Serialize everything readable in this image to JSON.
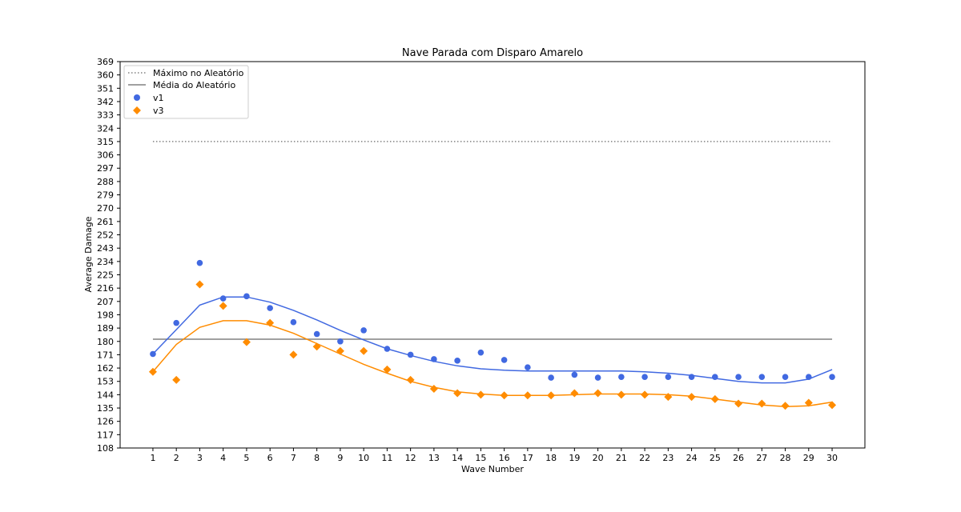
{
  "chart_data": {
    "type": "scatter",
    "title": "Nave Parada com Disparo Amarelo",
    "xlabel": "Wave Number",
    "ylabel": "Average Damage",
    "xlim": [
      -0.4,
      31.4
    ],
    "ylim": [
      108,
      369
    ],
    "x": [
      1,
      2,
      3,
      4,
      5,
      6,
      7,
      8,
      9,
      10,
      11,
      12,
      13,
      14,
      15,
      16,
      17,
      18,
      19,
      20,
      21,
      22,
      23,
      24,
      25,
      26,
      27,
      28,
      29,
      30
    ],
    "yticks": [
      108,
      117,
      126,
      135,
      144,
      153,
      162,
      171,
      180,
      189,
      198,
      207,
      216,
      225,
      234,
      243,
      252,
      261,
      270,
      279,
      288,
      297,
      306,
      315,
      324,
      333,
      342,
      351,
      360,
      369
    ],
    "reference_lines": [
      {
        "name": "Máximo no Aleatório",
        "value": 315,
        "style": "dotted",
        "color": "#808080"
      },
      {
        "name": "Média do Aleatório",
        "value": 181.5,
        "style": "solid",
        "color": "#808080"
      }
    ],
    "series": [
      {
        "name": "v1",
        "marker": "circle",
        "color": "#4169e1",
        "values": [
          171.5,
          192.5,
          233,
          209,
          210.5,
          202.5,
          193,
          185,
          180,
          187.5,
          175,
          171,
          168,
          167,
          172.5,
          167.5,
          162.5,
          155.5,
          157.5,
          155.5,
          156,
          156,
          156,
          156,
          156,
          156,
          156,
          156,
          156,
          156
        ],
        "trend": [
          171.5,
          188,
          204.5,
          210,
          210,
          206.5,
          201,
          194.5,
          187.5,
          181,
          175,
          170.5,
          166.5,
          163.5,
          161.5,
          160.5,
          160,
          160,
          160,
          160,
          160,
          159.5,
          158.5,
          157,
          155,
          153,
          152,
          152,
          154.5,
          161
        ]
      },
      {
        "name": "v3",
        "marker": "diamond",
        "color": "#ff8c00",
        "values": [
          159.5,
          154,
          218.5,
          204,
          179.5,
          192.5,
          171,
          176.5,
          173.5,
          173.5,
          161,
          154,
          148,
          145,
          144,
          143.5,
          143.5,
          143.5,
          145,
          145,
          144,
          144,
          142.5,
          142.5,
          141,
          138,
          138,
          136.5,
          138.5,
          137
        ],
        "trend": [
          159.5,
          178,
          189.5,
          194,
          194,
          191,
          185.5,
          178.5,
          171.5,
          164.5,
          158.5,
          153,
          149,
          146,
          144.5,
          143.5,
          143.5,
          143.5,
          144,
          144.5,
          144.5,
          144.5,
          144,
          143,
          141,
          139,
          137,
          136,
          136.5,
          139
        ]
      }
    ],
    "grid": false,
    "legend_position": "top-left"
  }
}
